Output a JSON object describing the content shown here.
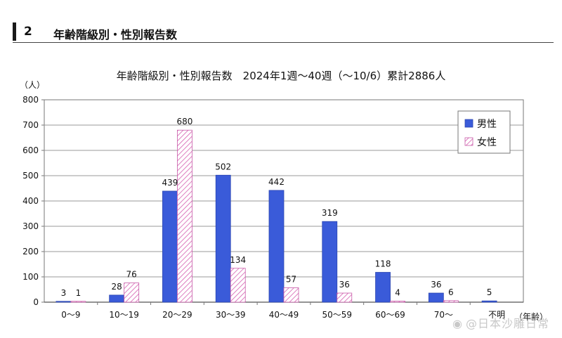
{
  "section": {
    "number": "2",
    "title": "年齢階級別・性別報告数"
  },
  "watermark": "@日本沙雕日常",
  "chart_data": {
    "type": "bar",
    "title": "年齢階級別・性別報告数　2024年1週～40週（～10/6）累計2886人",
    "ylabel": "（人）",
    "xlabel": "（年齢）",
    "categories": [
      "0～9",
      "10～19",
      "20～29",
      "30～39",
      "40～49",
      "50～59",
      "60～69",
      "70～",
      "不明"
    ],
    "series": [
      {
        "name": "男性",
        "values": [
          3,
          28,
          439,
          502,
          442,
          319,
          118,
          36,
          5
        ],
        "color": "#3a5bd9"
      },
      {
        "name": "女性",
        "values": [
          1,
          76,
          680,
          134,
          57,
          36,
          4,
          6,
          null
        ],
        "color": "#e27bc0"
      }
    ],
    "ylim": [
      0,
      800
    ],
    "yticks": [
      0,
      100,
      200,
      300,
      400,
      500,
      600,
      700,
      800
    ],
    "grid": true,
    "legend": "top-right"
  }
}
